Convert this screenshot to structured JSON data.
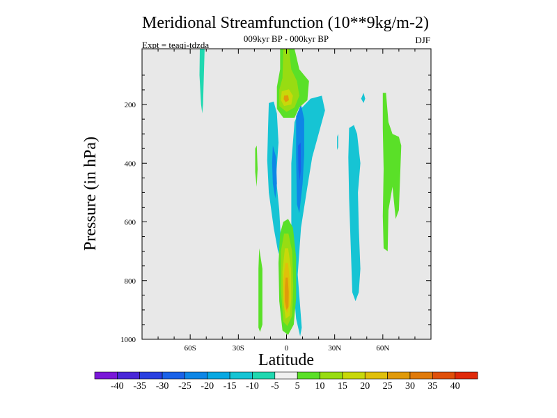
{
  "chart_data": {
    "type": "heatmap",
    "title": "Meridional Streamfunction (10**9kg/m-2)",
    "subtitle": "009kyr BP - 000kyr BP",
    "left_annotation": "Expt = teaqj-tdzda",
    "right_annotation": "DJF",
    "xlabel": "Latitude",
    "ylabel": "Pressure (in hPa)",
    "xlim": [
      -90,
      90
    ],
    "ylim": [
      1000,
      10
    ],
    "x_ticks": [
      {
        "value": -60,
        "label": "60S"
      },
      {
        "value": -30,
        "label": "30S"
      },
      {
        "value": 0,
        "label": "0"
      },
      {
        "value": 30,
        "label": "30N"
      },
      {
        "value": 60,
        "label": "60N"
      }
    ],
    "y_ticks": [
      {
        "value": 200,
        "label": "200"
      },
      {
        "value": 400,
        "label": "400"
      },
      {
        "value": 600,
        "label": "600"
      },
      {
        "value": 800,
        "label": "800"
      },
      {
        "value": 1000,
        "label": "1000"
      }
    ],
    "background_color": "#e8e8e8",
    "colorbar": {
      "labels": [
        "-40",
        "-35",
        "-30",
        "-25",
        "-20",
        "-15",
        "-10",
        "-5",
        "5",
        "10",
        "15",
        "20",
        "25",
        "30",
        "35",
        "40"
      ],
      "colors": [
        "#7a18d8",
        "#4a28d8",
        "#2a40e0",
        "#1a62e8",
        "#0e86e6",
        "#08a8e2",
        "#16c4d4",
        "#20d8b0",
        "#f0f0f0",
        "#5ae028",
        "#98dc12",
        "#c8d80a",
        "#e0c00a",
        "#e09a0a",
        "#e07a0a",
        "#e0500a",
        "#e02a0a"
      ]
    },
    "contours": [
      {
        "name": "hl-teal-upper-60s",
        "color": "#20d8b0",
        "points": [
          [
            -54,
            10
          ],
          [
            -51,
            10
          ],
          [
            -51.5,
            100
          ],
          [
            -52,
            200
          ],
          [
            -52.5,
            230
          ],
          [
            -53.2,
            200
          ],
          [
            -54.2,
            100
          ]
        ]
      },
      {
        "name": "cyan-left-column",
        "color": "#16c4d4",
        "points": [
          [
            -11,
            195
          ],
          [
            -8,
            190
          ],
          [
            -6,
            230
          ],
          [
            -5,
            330
          ],
          [
            -6.5,
            450
          ],
          [
            -4.5,
            560
          ],
          [
            -3.5,
            660
          ],
          [
            -5,
            710
          ],
          [
            -8,
            620
          ],
          [
            -11,
            500
          ],
          [
            -12,
            390
          ],
          [
            -11.5,
            280
          ]
        ]
      },
      {
        "name": "blue-left-column",
        "color": "#0e86e6",
        "points": [
          [
            -8.5,
            340
          ],
          [
            -6.5,
            380
          ],
          [
            -6,
            470
          ],
          [
            -7,
            520
          ],
          [
            -8.5,
            470
          ],
          [
            -9,
            400
          ]
        ]
      },
      {
        "name": "green-left-speck",
        "color": "#5ae028",
        "points": [
          [
            -19.5,
            350
          ],
          [
            -18.5,
            340
          ],
          [
            -18,
            420
          ],
          [
            -18.6,
            480
          ],
          [
            -19.5,
            430
          ]
        ]
      },
      {
        "name": "green-left-lower",
        "color": "#5ae028",
        "points": [
          [
            -17,
            690
          ],
          [
            -15,
            760
          ],
          [
            -15,
            950
          ],
          [
            -16.5,
            975
          ],
          [
            -17.5,
            960
          ],
          [
            -17.5,
            760
          ]
        ]
      },
      {
        "name": "cyan-right-column",
        "color": "#16c4d4",
        "points": [
          [
            3,
            400
          ],
          [
            5,
            260
          ],
          [
            8,
            220
          ],
          [
            15,
            180
          ],
          [
            22,
            170
          ],
          [
            24,
            220
          ],
          [
            20,
            300
          ],
          [
            16,
            380
          ],
          [
            13,
            480
          ],
          [
            9,
            620
          ],
          [
            7,
            780
          ],
          [
            9.5,
            960
          ],
          [
            8.5,
            990
          ],
          [
            6,
            930
          ],
          [
            4,
            800
          ],
          [
            3,
            600
          ]
        ]
      },
      {
        "name": "blue-right-column",
        "color": "#0e86e6",
        "points": [
          [
            6,
            240
          ],
          [
            9,
            200
          ],
          [
            11,
            250
          ],
          [
            11,
            370
          ],
          [
            10,
            470
          ],
          [
            8,
            570
          ],
          [
            6.5,
            540
          ],
          [
            6,
            380
          ]
        ]
      },
      {
        "name": "blue-right-core",
        "color": "#1a62e8",
        "points": [
          [
            7.2,
            340
          ],
          [
            8.8,
            330
          ],
          [
            9,
            420
          ],
          [
            8.2,
            460
          ],
          [
            7.4,
            420
          ]
        ]
      },
      {
        "name": "green-top-center",
        "color": "#5ae028",
        "points": [
          [
            -4,
            10
          ],
          [
            5,
            10
          ],
          [
            8,
            80
          ],
          [
            14,
            120
          ],
          [
            13,
            185
          ],
          [
            8,
            210
          ],
          [
            5,
            245
          ],
          [
            -2,
            245
          ],
          [
            -6,
            215
          ],
          [
            -6,
            140
          ],
          [
            -4,
            80
          ]
        ]
      },
      {
        "name": "lime-top-center",
        "color": "#98dc12",
        "points": [
          [
            -2,
            10
          ],
          [
            1.5,
            10
          ],
          [
            3,
            80
          ],
          [
            6.5,
            120
          ],
          [
            8,
            170
          ],
          [
            5,
            210
          ],
          [
            0,
            225
          ],
          [
            -4.5,
            205
          ],
          [
            -4.5,
            150
          ],
          [
            -2.5,
            110
          ]
        ]
      },
      {
        "name": "yellow-top-center",
        "color": "#c8d80a",
        "points": [
          [
            -3,
            155
          ],
          [
            1.5,
            148
          ],
          [
            4,
            170
          ],
          [
            3,
            200
          ],
          [
            -1.5,
            205
          ],
          [
            -3.5,
            185
          ]
        ]
      },
      {
        "name": "orange-top-center",
        "color": "#e09a0a",
        "points": [
          [
            -1.5,
            170
          ],
          [
            1,
            168
          ],
          [
            1.5,
            185
          ],
          [
            -0.5,
            192
          ],
          [
            -1.8,
            182
          ]
        ]
      },
      {
        "name": "green-center-lower",
        "color": "#5ae028",
        "points": [
          [
            -2,
            600
          ],
          [
            1,
            590
          ],
          [
            4,
            620
          ],
          [
            6,
            720
          ],
          [
            6,
            860
          ],
          [
            4.5,
            950
          ],
          [
            1,
            985
          ],
          [
            -2.5,
            970
          ],
          [
            -4.5,
            870
          ],
          [
            -5,
            740
          ],
          [
            -4,
            640
          ]
        ]
      },
      {
        "name": "lime-center-lower",
        "color": "#98dc12",
        "points": [
          [
            -1.5,
            640
          ],
          [
            1.2,
            640
          ],
          [
            3.5,
            700
          ],
          [
            4.2,
            820
          ],
          [
            3.5,
            920
          ],
          [
            0.5,
            955
          ],
          [
            -2,
            940
          ],
          [
            -3.5,
            830
          ],
          [
            -3.5,
            700
          ]
        ]
      },
      {
        "name": "yellow-center-lower",
        "color": "#c8d80a",
        "points": [
          [
            -1,
            690
          ],
          [
            1,
            690
          ],
          [
            2.8,
            760
          ],
          [
            3,
            860
          ],
          [
            2,
            920
          ],
          [
            -0.5,
            930
          ],
          [
            -2,
            870
          ],
          [
            -2.5,
            770
          ]
        ]
      },
      {
        "name": "gold-center-lower",
        "color": "#e0c00a",
        "points": [
          [
            -0.8,
            740
          ],
          [
            1,
            740
          ],
          [
            2,
            800
          ],
          [
            2,
            880
          ],
          [
            0.5,
            910
          ],
          [
            -1.5,
            890
          ],
          [
            -2,
            800
          ]
        ]
      },
      {
        "name": "orange-center-lower",
        "color": "#e09a0a",
        "points": [
          [
            -0.5,
            790
          ],
          [
            0.8,
            790
          ],
          [
            1.4,
            840
          ],
          [
            1.2,
            890
          ],
          [
            0,
            900
          ],
          [
            -1,
            870
          ],
          [
            -1,
            820
          ]
        ]
      },
      {
        "name": "cyan-right-far",
        "color": "#16c4d4",
        "points": [
          [
            39,
            280
          ],
          [
            42,
            270
          ],
          [
            44,
            300
          ],
          [
            46,
            400
          ],
          [
            44.5,
            500
          ],
          [
            45,
            620
          ],
          [
            46,
            760
          ],
          [
            45,
            840
          ],
          [
            43,
            870
          ],
          [
            41,
            840
          ],
          [
            40,
            680
          ],
          [
            39,
            520
          ],
          [
            38.5,
            380
          ]
        ]
      },
      {
        "name": "cyan-speck-30n",
        "color": "#16c4d4",
        "points": [
          [
            31.5,
            310
          ],
          [
            32.2,
            300
          ],
          [
            32.2,
            345
          ],
          [
            31.5,
            355
          ]
        ]
      },
      {
        "name": "cyan-speck-47n",
        "color": "#16c4d4",
        "points": [
          [
            46.5,
            180
          ],
          [
            48,
            160
          ],
          [
            49,
            180
          ],
          [
            48,
            195
          ]
        ]
      },
      {
        "name": "green-far-right",
        "color": "#5ae028",
        "points": [
          [
            60,
            160
          ],
          [
            62,
            160
          ],
          [
            63.5,
            260
          ],
          [
            66,
            300
          ],
          [
            70,
            310
          ],
          [
            71.5,
            340
          ],
          [
            70,
            560
          ],
          [
            68,
            590
          ],
          [
            66,
            480
          ],
          [
            63.5,
            560
          ],
          [
            63,
            700
          ],
          [
            60.5,
            690
          ],
          [
            60,
            580
          ],
          [
            60.5,
            420
          ],
          [
            60,
            280
          ]
        ]
      }
    ]
  }
}
